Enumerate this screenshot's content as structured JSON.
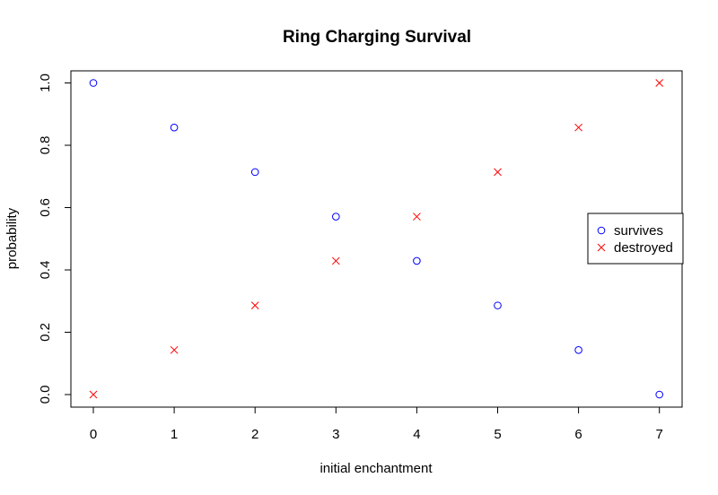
{
  "chart_data": {
    "type": "scatter",
    "title": "Ring Charging Survival",
    "xlabel": "initial enchantment",
    "ylabel": "probability",
    "xlim": [
      0,
      7
    ],
    "ylim": [
      0,
      1
    ],
    "x_ticks": [
      "0",
      "1",
      "2",
      "3",
      "4",
      "5",
      "6",
      "7"
    ],
    "y_ticks": [
      "0.0",
      "0.2",
      "0.4",
      "0.6",
      "0.8",
      "1.0"
    ],
    "x": [
      0,
      1,
      2,
      3,
      4,
      5,
      6,
      7
    ],
    "series": [
      {
        "name": "survives",
        "marker": "circle",
        "color": "#0000ff",
        "values": [
          1.0,
          0.857,
          0.714,
          0.571,
          0.429,
          0.286,
          0.143,
          0.0
        ]
      },
      {
        "name": "destroyed",
        "marker": "x",
        "color": "#ff0000",
        "values": [
          0.0,
          0.143,
          0.286,
          0.429,
          0.571,
          0.714,
          0.857,
          1.0
        ]
      }
    ],
    "legend_position": "right",
    "grid": false
  }
}
